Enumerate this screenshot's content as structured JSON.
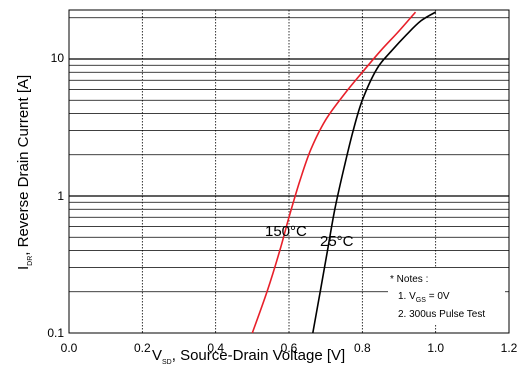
{
  "chart_data": {
    "type": "line",
    "xlabel": {
      "prefix": "V",
      "sub": "SD",
      "suffix": ", Source-Drain Voltage [V]"
    },
    "ylabel": {
      "prefix": "I",
      "sub": "DR",
      "suffix": ", Reverse Drain Current [A]"
    },
    "xlim": [
      0.0,
      1.2
    ],
    "ylim": [
      0.1,
      22
    ],
    "yscale": "log",
    "grid": true,
    "x_ticks": [
      "0.0",
      "0.2",
      "0.4",
      "0.6",
      "0.8",
      "1.0",
      "1.2"
    ],
    "y_ticks": [
      "0.1",
      "1",
      "10"
    ],
    "series": [
      {
        "name": "150°C",
        "color": "#e8202a",
        "points": [
          [
            0.5,
            0.1
          ],
          [
            0.54,
            0.2
          ],
          [
            0.575,
            0.4
          ],
          [
            0.6,
            0.7
          ],
          [
            0.63,
            1.3
          ],
          [
            0.66,
            2.2
          ],
          [
            0.7,
            3.6
          ],
          [
            0.75,
            5.5
          ],
          [
            0.8,
            8.0
          ],
          [
            0.85,
            11.5
          ],
          [
            0.9,
            16.0
          ],
          [
            0.945,
            22
          ]
        ]
      },
      {
        "name": "25°C",
        "color": "#000000",
        "points": [
          [
            0.665,
            0.1
          ],
          [
            0.685,
            0.2
          ],
          [
            0.705,
            0.4
          ],
          [
            0.725,
            0.8
          ],
          [
            0.75,
            1.6
          ],
          [
            0.775,
            3.0
          ],
          [
            0.8,
            5.0
          ],
          [
            0.84,
            8.5
          ],
          [
            0.88,
            11.5
          ],
          [
            0.92,
            15.0
          ],
          [
            0.96,
            19.0
          ],
          [
            1.0,
            22
          ]
        ]
      }
    ],
    "curve_labels": [
      {
        "text": "150°C",
        "series": 0
      },
      {
        "text": "25°C",
        "series": 1
      }
    ],
    "notes": {
      "title": "* Notes :",
      "line1": {
        "prefix": "1. V",
        "sub": "GS",
        "suffix": " = 0V"
      },
      "line2": "2. 300us Pulse Test"
    }
  }
}
